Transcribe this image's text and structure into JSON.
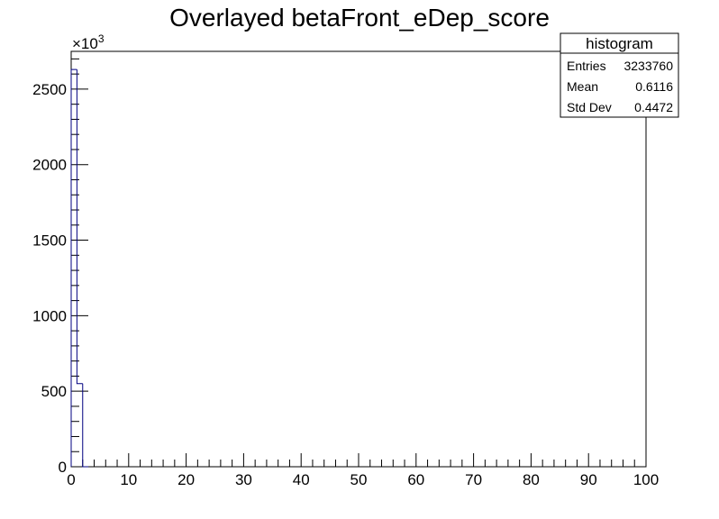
{
  "chart_data": {
    "type": "bar",
    "title": "Overlayed betaFront_eDep_score",
    "xlabel": "",
    "ylabel": "",
    "y_exponent_label": "×10",
    "y_exponent_power": "3",
    "xlim": [
      0,
      100
    ],
    "ylim": [
      0,
      2750
    ],
    "x_ticks": [
      0,
      10,
      20,
      30,
      40,
      50,
      60,
      70,
      80,
      90,
      100
    ],
    "x_tick_labels": [
      "0",
      "10",
      "20",
      "30",
      "40",
      "50",
      "60",
      "70",
      "80",
      "90",
      "100"
    ],
    "y_ticks": [
      0,
      500,
      1000,
      1500,
      2000,
      2500
    ],
    "y_tick_labels": [
      "0",
      "500",
      "1000",
      "1500",
      "2000",
      "2500"
    ],
    "bin_width": 1,
    "bins": [
      {
        "x0": 0,
        "x1": 1,
        "value": 2630
      },
      {
        "x0": 1,
        "x1": 2,
        "value": 550
      },
      {
        "x0": 2,
        "x1": 3,
        "value": 0
      }
    ],
    "line_color": "#000080",
    "grid": false,
    "legend": "none"
  },
  "stats_box": {
    "title": "histogram",
    "rows": [
      {
        "label": "Entries",
        "value": "3233760"
      },
      {
        "label": "Mean",
        "value": "0.6116"
      },
      {
        "label": "Std Dev",
        "value": "0.4472"
      }
    ]
  }
}
